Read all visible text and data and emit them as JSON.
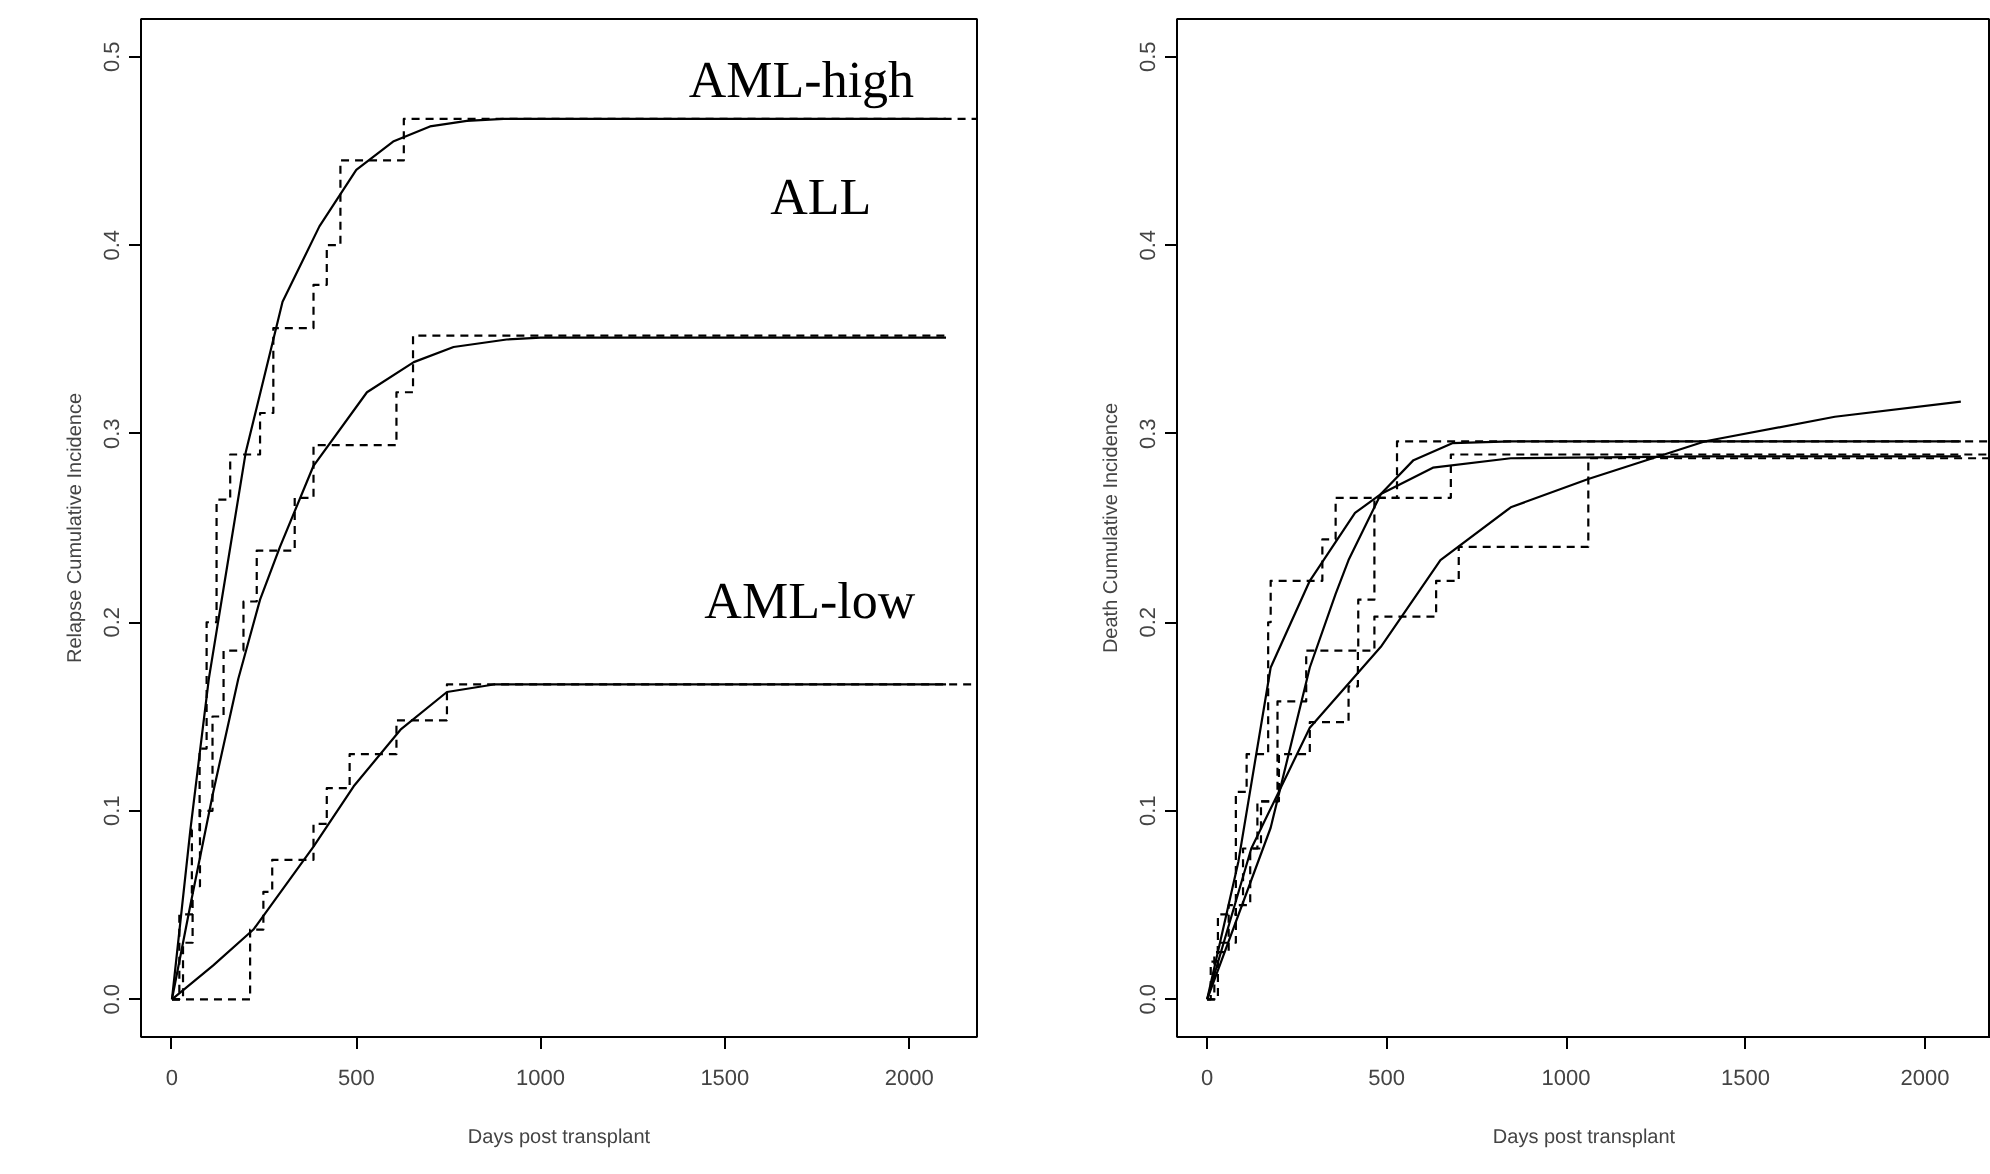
{
  "chart_data": [
    {
      "type": "line",
      "xlabel": "Days post transplant",
      "ylabel": "Relapse Cumulative Incidence",
      "xlim": [
        -84,
        2184
      ],
      "ylim": [
        -0.02,
        0.52
      ],
      "xticks": [
        0,
        500,
        1000,
        1500,
        2000
      ],
      "yticks": [
        {
          "value": 0,
          "label": "0.0"
        },
        0.1,
        0.2,
        0.3,
        0.4,
        0.5
      ],
      "annotations": [
        "AML-high",
        "ALL",
        "AML-low"
      ],
      "series": [
        {
          "type": "line",
          "line_style": "solid",
          "color": "#000000",
          "x": [
            0,
            50,
            100,
            150,
            200,
            250,
            300,
            400,
            500,
            600,
            700,
            800,
            900,
            2100
          ],
          "values": [
            0,
            0.09,
            0.17,
            0.23,
            0.29,
            0.33,
            0.37,
            0.41,
            0.44,
            0.455,
            0.463,
            0.466,
            0.467,
            0.467
          ]
        },
        {
          "type": "step",
          "line_style": "dashed",
          "color": "#000000",
          "x": [
            0,
            20,
            54,
            75,
            94,
            121,
            158,
            239,
            275,
            384,
            420,
            457,
            629,
            2184
          ],
          "values": [
            0,
            0.045,
            0.09,
            0.133,
            0.2,
            0.265,
            0.289,
            0.311,
            0.356,
            0.379,
            0.4,
            0.445,
            0.467,
            0.467
          ]
        },
        {
          "type": "line",
          "line_style": "solid",
          "color": "#000000",
          "x": [
            0,
            50,
            112,
            180,
            239,
            293,
            384,
            529,
            656,
            764,
            908,
            1000,
            2100
          ],
          "values": [
            0,
            0.05,
            0.11,
            0.17,
            0.212,
            0.24,
            0.283,
            0.322,
            0.338,
            0.346,
            0.35,
            0.351,
            0.351
          ]
        },
        {
          "type": "step",
          "line_style": "dashed",
          "color": "#000000",
          "x": [
            0,
            30,
            56,
            76,
            110,
            140,
            194,
            230,
            333,
            384,
            609,
            654,
            2100
          ],
          "values": [
            0,
            0.03,
            0.06,
            0.1,
            0.15,
            0.185,
            0.211,
            0.238,
            0.266,
            0.294,
            0.322,
            0.352,
            0.352
          ]
        },
        {
          "type": "line",
          "line_style": "solid",
          "color": "#000000",
          "x": [
            0,
            112,
            221,
            384,
            493,
            620,
            746,
            873,
            2100
          ],
          "values": [
            0,
            0.018,
            0.037,
            0.081,
            0.113,
            0.143,
            0.163,
            0.167,
            0.167
          ]
        },
        {
          "type": "step",
          "line_style": "dashed",
          "color": "#000000",
          "x": [
            0,
            212,
            248,
            272,
            384,
            420,
            482,
            609,
            746,
            2184
          ],
          "values": [
            0,
            0.037,
            0.057,
            0.074,
            0.093,
            0.112,
            0.13,
            0.148,
            0.167,
            0.167
          ]
        }
      ]
    },
    {
      "type": "line",
      "xlabel": "Days post transplant",
      "ylabel": "Death Cumulative Incidence",
      "xlim": [
        -84,
        2184
      ],
      "ylim": [
        -0.02,
        0.52
      ],
      "xticks": [
        0,
        500,
        1000,
        1500,
        2000
      ],
      "yticks": [
        {
          "value": 0,
          "label": "0.0"
        },
        0.1,
        0.2,
        0.3,
        0.4,
        0.5
      ],
      "series": [
        {
          "type": "line",
          "line_style": "solid",
          "color": "#000000",
          "x": [
            0,
            87,
            177,
            286,
            412,
            484,
            629,
            846,
            1388,
            2100
          ],
          "values": [
            0,
            0.073,
            0.176,
            0.222,
            0.258,
            0.268,
            0.282,
            0.287,
            0.288,
            0.288
          ]
        },
        {
          "type": "line",
          "line_style": "solid",
          "color": "#000000",
          "x": [
            0,
            177,
            286,
            358,
            394,
            484,
            575,
            683,
            846,
            2100
          ],
          "values": [
            0,
            0.091,
            0.176,
            0.215,
            0.233,
            0.268,
            0.286,
            0.295,
            0.296,
            0.296
          ]
        },
        {
          "type": "line",
          "line_style": "solid",
          "color": "#000000",
          "x": [
            0,
            123,
            286,
            484,
            650,
            846,
            1062,
            1388,
            1749,
            2100
          ],
          "values": [
            0,
            0.08,
            0.144,
            0.187,
            0.233,
            0.261,
            0.276,
            0.296,
            0.309,
            0.317
          ]
        },
        {
          "type": "step",
          "line_style": "dashed",
          "color": "#000000",
          "x": [
            0,
            10,
            30,
            80,
            110,
            170,
            177,
            321,
            358,
            679,
            2184
          ],
          "values": [
            0,
            0.02,
            0.045,
            0.11,
            0.13,
            0.2,
            0.222,
            0.244,
            0.266,
            0.289,
            0.289
          ]
        },
        {
          "type": "step",
          "line_style": "dashed",
          "color": "#000000",
          "x": [
            0,
            20,
            60,
            100,
            140,
            196,
            276,
            421,
            466,
            529,
            2184
          ],
          "values": [
            0,
            0.025,
            0.05,
            0.08,
            0.105,
            0.158,
            0.185,
            0.212,
            0.266,
            0.296,
            0.296
          ]
        },
        {
          "type": "step",
          "line_style": "dashed",
          "color": "#000000",
          "x": [
            0,
            30,
            80,
            120,
            150,
            200,
            286,
            394,
            420,
            466,
            638,
            701,
            1062,
            2184
          ],
          "values": [
            0,
            0.03,
            0.05,
            0.08,
            0.105,
            0.13,
            0.147,
            0.166,
            0.185,
            0.203,
            0.222,
            0.24,
            0.287,
            0.287
          ]
        }
      ]
    }
  ]
}
